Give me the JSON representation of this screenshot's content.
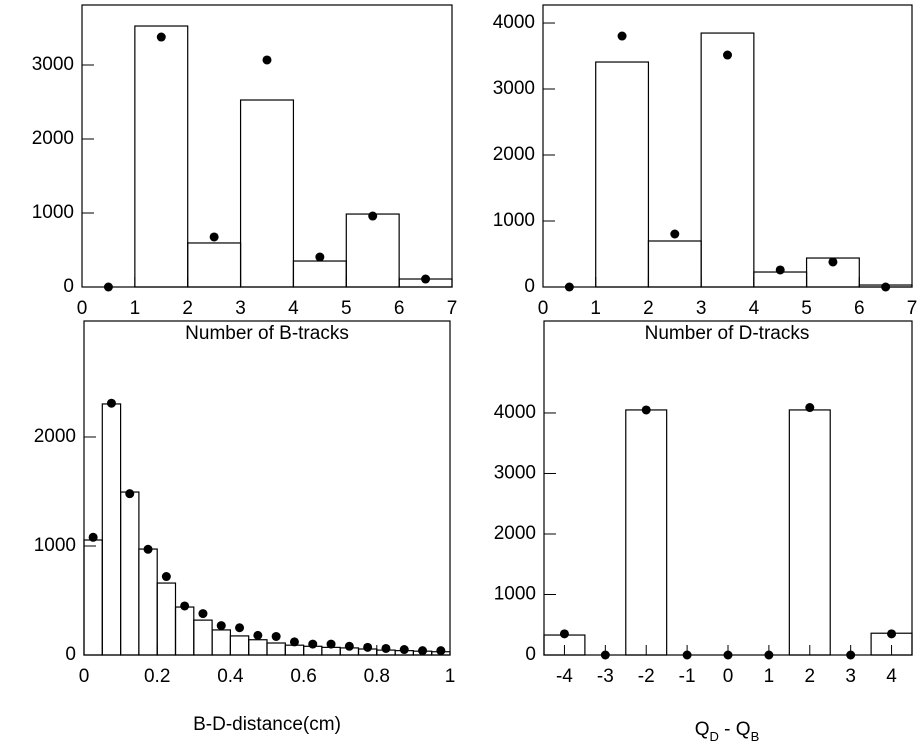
{
  "chart_data": [
    {
      "type": "histogram",
      "x_label": [
        {
          "text": "Number of B-tracks"
        }
      ],
      "bins": [
        0,
        1,
        2,
        3,
        4,
        5,
        6,
        7
      ],
      "histogram": {
        "values": [
          0,
          3527,
          595,
          2527,
          351,
          986,
          108
        ],
        "color": "#000000"
      },
      "points": {
        "values": [
          0,
          3378,
          676,
          3068,
          405,
          959,
          108
        ],
        "color": "#000000"
      },
      "xlim": [
        0,
        7
      ],
      "ylim": [
        0,
        3811
      ],
      "xticks": [
        0,
        1,
        2,
        3,
        4,
        5,
        6,
        7
      ],
      "yticks": [
        0,
        1000,
        2000,
        3000
      ]
    },
    {
      "type": "histogram",
      "x_label": [
        {
          "text": "Number of D-tracks"
        }
      ],
      "bins": [
        0,
        1,
        2,
        3,
        4,
        5,
        6,
        7
      ],
      "histogram": {
        "values": [
          0,
          3409,
          697,
          3848,
          227,
          439,
          30
        ],
        "color": "#000000"
      },
      "points": {
        "values": [
          0,
          3803,
          803,
          3515,
          258,
          379,
          0
        ],
        "color": "#000000"
      },
      "xlim": [
        0,
        7
      ],
      "ylim": [
        0,
        4273
      ],
      "xticks": [
        0,
        1,
        2,
        3,
        4,
        5,
        6,
        7
      ],
      "yticks": [
        0,
        1000,
        2000,
        3000,
        4000
      ]
    },
    {
      "type": "histogram",
      "x_label": [
        {
          "text": "B-D-distance(cm)"
        }
      ],
      "bins": [
        0,
        0.05,
        0.1,
        0.15,
        0.2,
        0.25,
        0.3,
        0.35,
        0.4,
        0.45,
        0.5,
        0.55,
        0.6,
        0.65,
        0.7,
        0.75,
        0.8,
        0.85,
        0.9,
        0.95,
        1
      ],
      "histogram": {
        "values": [
          1055,
          2303,
          1495,
          972,
          660,
          440,
          320,
          230,
          175,
          140,
          110,
          90,
          80,
          70,
          65,
          55,
          45,
          40,
          35,
          30
        ],
        "color": "#000000"
      },
      "points": {
        "values": [
          1080,
          2310,
          1480,
          970,
          720,
          450,
          380,
          270,
          250,
          180,
          170,
          120,
          100,
          100,
          80,
          70,
          60,
          50,
          40,
          40
        ],
        "color": "#000000"
      },
      "xlim": [
        0,
        1
      ],
      "ylim": [
        0,
        3064
      ],
      "xticks": [
        0,
        0.2,
        0.4,
        0.6,
        0.8,
        1
      ],
      "yticks": [
        0,
        1000,
        2000
      ]
    },
    {
      "type": "histogram",
      "x_label": [
        {
          "text": "Q"
        },
        {
          "text": "D",
          "sub": true
        },
        {
          "text": " - Q"
        },
        {
          "text": "B",
          "sub": true
        }
      ],
      "bins": [
        -4.5,
        -3.5,
        -2.5,
        -1.5,
        -0.5,
        0.5,
        1.5,
        2.5,
        3.5,
        4.5
      ],
      "histogram": {
        "values": [
          330,
          0,
          4050,
          0,
          0,
          0,
          4050,
          0,
          360
        ],
        "color": "#000000"
      },
      "points": {
        "values": [
          350,
          0,
          4050,
          0,
          0,
          0,
          4090,
          0,
          350
        ],
        "color": "#000000"
      },
      "xlim": [
        -4.5,
        4.5
      ],
      "ylim": [
        0,
        5520
      ],
      "xticks": [
        -4,
        -3,
        -2,
        -1,
        0,
        1,
        2,
        3,
        4
      ],
      "yticks": [
        0,
        1000,
        2000,
        3000,
        4000
      ]
    }
  ]
}
